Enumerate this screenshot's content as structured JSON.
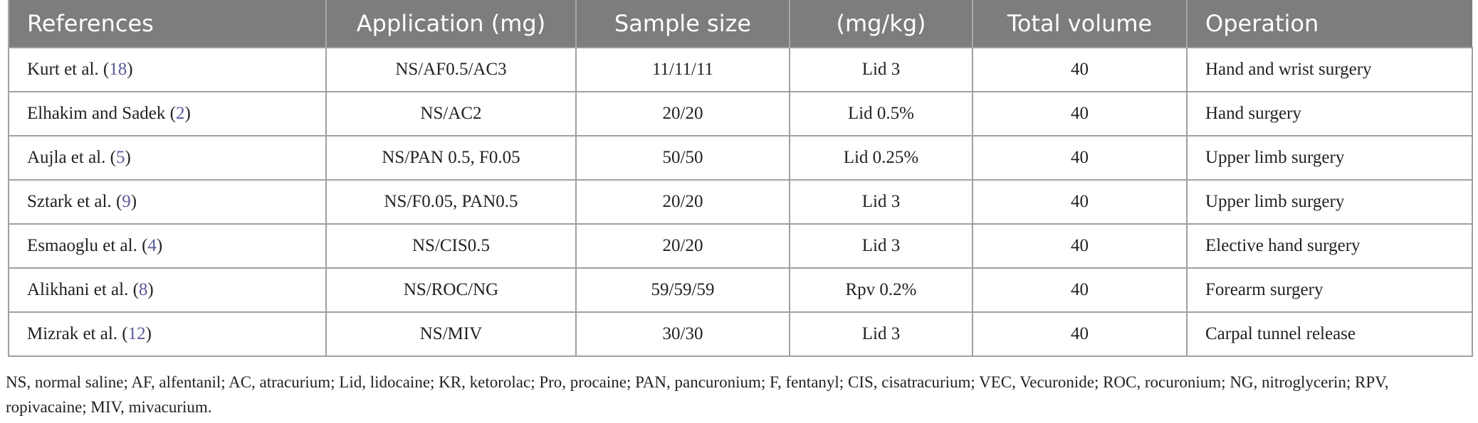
{
  "table": {
    "header": [
      "References",
      "Application (mg)",
      "Sample size",
      "(mg/kg)",
      "Total volume",
      "Operation"
    ],
    "rows": [
      [
        [
          "Kurt et al. (",
          "18",
          ")"
        ],
        "NS/AF0.5/AC3",
        "11/11/11",
        "Lid 3",
        "40",
        "Hand and wrist surgery"
      ],
      [
        [
          "Elhakim and Sadek (",
          "2",
          ")"
        ],
        "NS/AC2",
        "20/20",
        "Lid 0.5%",
        "40",
        "Hand surgery"
      ],
      [
        [
          "Aujla et al. (",
          "5",
          ")"
        ],
        "NS/PAN 0.5, F0.05",
        "50/50",
        "Lid 0.25%",
        "40",
        "Upper limb surgery"
      ],
      [
        [
          "Sztark et al. (",
          "9",
          ")"
        ],
        "NS/F0.05, PAN0.5",
        "20/20",
        "Lid 3",
        "40",
        "Upper limb surgery"
      ],
      [
        [
          "Esmaoglu et al. (",
          "4",
          ")"
        ],
        "NS/CIS0.5",
        "20/20",
        "Lid 3",
        "40",
        "Elective hand surgery"
      ],
      [
        [
          "Alikhani et al. (",
          "8",
          ")"
        ],
        "NS/ROC/NG",
        "59/59/59",
        "Rpv 0.2%",
        "40",
        "Forearm surgery"
      ],
      [
        [
          "Mizrak et al. (",
          "12",
          ")"
        ],
        "NS/MIV",
        "30/30",
        "Lid 3",
        "40",
        "Carpal tunnel release"
      ]
    ],
    "footnote": "NS, normal saline; AF, alfentanil; AC, atracurium; Lid, lidocaine; KR, ketorolac; Pro, procaine; PAN, pancuronium; F, fentanyl; CIS, cisatracurium; VEC, Vecuronide; ROC, rocuronium; NG, nitroglycerin; RPV, ropivacaine; MIV, mivacurium."
  }
}
